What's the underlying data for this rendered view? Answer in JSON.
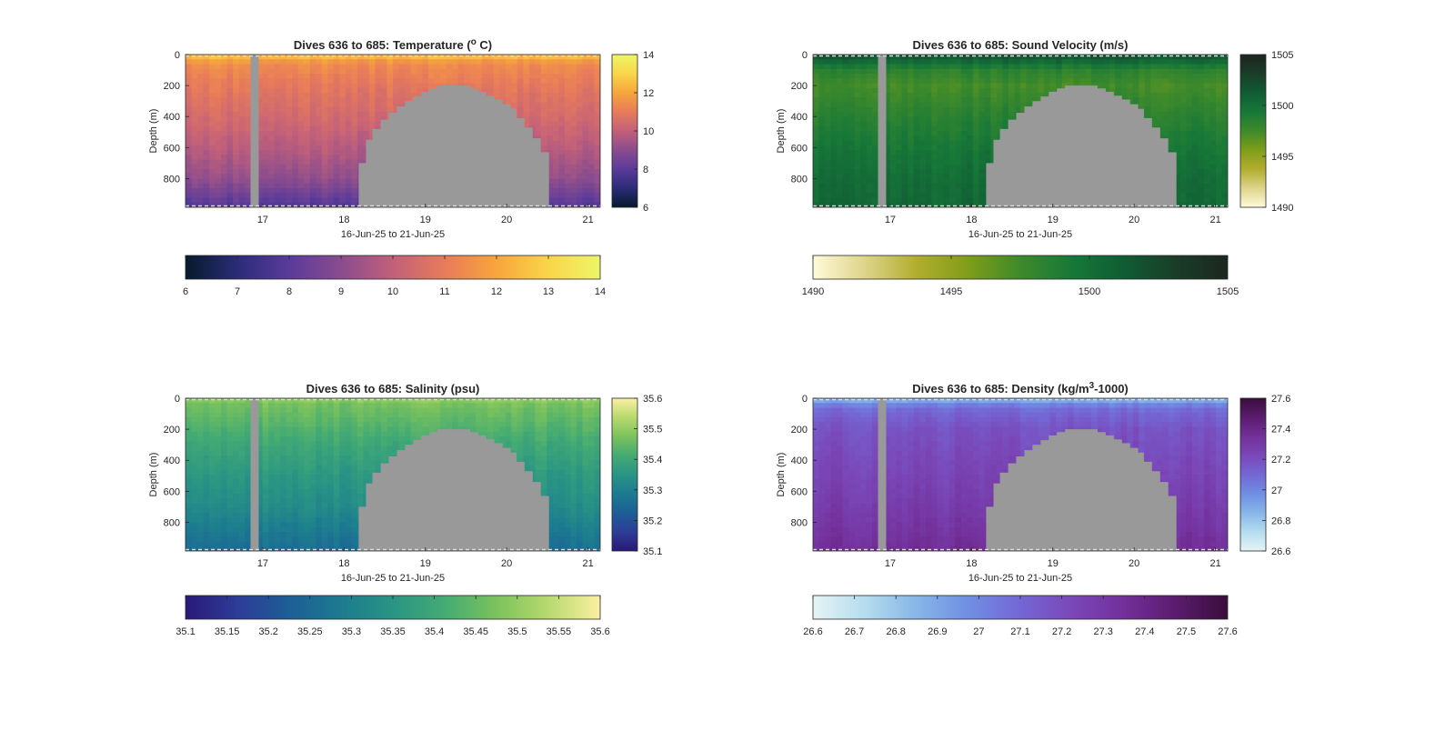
{
  "figure": {
    "background": "#ffffff",
    "no_data_color": "#999999"
  },
  "chart_data": [
    {
      "type": "heatmap",
      "title": "Dives 636 to 685: Temperature (",
      "title_superscript": "o",
      "title_suffix": " C)",
      "xlabel": "16-Jun-25 to 21-Jun-25",
      "ylabel": "Depth (m)",
      "xlim": [
        16.05,
        21.15
      ],
      "ylim": [
        0,
        985
      ],
      "y_reversed": true,
      "xticks": [
        17,
        18,
        19,
        20,
        21
      ],
      "yticks": [
        0,
        200,
        400,
        600,
        800
      ],
      "clim": [
        6,
        14
      ],
      "colorbar_ticks": [
        6,
        8,
        10,
        12,
        14
      ],
      "hbar_ticks": [
        "6",
        "7",
        "8",
        "9",
        "10",
        "11",
        "12",
        "13",
        "14"
      ],
      "colormap": [
        "#061a2c",
        "#2b2c78",
        "#5a3b9a",
        "#8a4c8e",
        "#c2607a",
        "#e87b5a",
        "#f7a53c",
        "#f9d549",
        "#eef569"
      ],
      "profile": [
        [
          0,
          12.8
        ],
        [
          25,
          12.1
        ],
        [
          60,
          11.4
        ],
        [
          200,
          10.9
        ],
        [
          400,
          10.4
        ],
        [
          600,
          9.8
        ],
        [
          800,
          9.1
        ],
        [
          900,
          8.4
        ],
        [
          985,
          7.8
        ]
      ],
      "gaps": [
        [
          16.85,
          16.95
        ]
      ],
      "no_data_region": [
        [
          18.18,
          985
        ],
        [
          18.18,
          700
        ],
        [
          18.27,
          700
        ],
        [
          18.27,
          550
        ],
        [
          18.35,
          550
        ],
        [
          18.35,
          480
        ],
        [
          18.45,
          480
        ],
        [
          18.45,
          420
        ],
        [
          18.55,
          420
        ],
        [
          18.55,
          375
        ],
        [
          18.65,
          375
        ],
        [
          18.65,
          335
        ],
        [
          18.75,
          335
        ],
        [
          18.75,
          300
        ],
        [
          18.85,
          300
        ],
        [
          18.85,
          270
        ],
        [
          18.95,
          270
        ],
        [
          18.95,
          240
        ],
        [
          19.05,
          240
        ],
        [
          19.05,
          218
        ],
        [
          19.15,
          218
        ],
        [
          19.15,
          200
        ],
        [
          19.55,
          200
        ],
        [
          19.55,
          218
        ],
        [
          19.65,
          218
        ],
        [
          19.65,
          240
        ],
        [
          19.75,
          240
        ],
        [
          19.75,
          265
        ],
        [
          19.85,
          265
        ],
        [
          19.85,
          290
        ],
        [
          19.95,
          290
        ],
        [
          19.95,
          320
        ],
        [
          20.05,
          320
        ],
        [
          20.05,
          350
        ],
        [
          20.12,
          350
        ],
        [
          20.12,
          410
        ],
        [
          20.22,
          410
        ],
        [
          20.22,
          470
        ],
        [
          20.32,
          470
        ],
        [
          20.32,
          540
        ],
        [
          20.42,
          540
        ],
        [
          20.42,
          630
        ],
        [
          20.52,
          630
        ],
        [
          20.52,
          985
        ]
      ]
    },
    {
      "type": "heatmap",
      "title": "Dives 636 to 685: Sound Velocity (m/s)",
      "xlabel": "16-Jun-25 to 21-Jun-25",
      "ylabel": "Depth (m)",
      "xlim": [
        16.05,
        21.15
      ],
      "ylim": [
        0,
        985
      ],
      "y_reversed": true,
      "xticks": [
        17,
        18,
        19,
        20,
        21
      ],
      "yticks": [
        0,
        200,
        400,
        600,
        800
      ],
      "clim": [
        1490,
        1505
      ],
      "colorbar_ticks": [
        1490,
        1495,
        1500,
        1505
      ],
      "hbar_ticks": [
        "1490",
        "1495",
        "1500",
        "1505"
      ],
      "colormap": [
        "#fefbd9",
        "#ded48a",
        "#b2ad2e",
        "#7f9d19",
        "#3e8a2b",
        "#177838",
        "#105c34",
        "#1a3d28",
        "#1c2620"
      ],
      "profile": [
        [
          0,
          1502.0
        ],
        [
          40,
          1500.6
        ],
        [
          100,
          1498.4
        ],
        [
          200,
          1497.4
        ],
        [
          400,
          1498.5
        ],
        [
          600,
          1499.5
        ],
        [
          800,
          1500.2
        ],
        [
          985,
          1500.6
        ]
      ],
      "gaps": [
        [
          16.85,
          16.95
        ]
      ],
      "no_data_region": [
        [
          18.18,
          985
        ],
        [
          18.18,
          700
        ],
        [
          18.27,
          700
        ],
        [
          18.27,
          550
        ],
        [
          18.35,
          550
        ],
        [
          18.35,
          480
        ],
        [
          18.45,
          480
        ],
        [
          18.45,
          420
        ],
        [
          18.55,
          420
        ],
        [
          18.55,
          375
        ],
        [
          18.65,
          375
        ],
        [
          18.65,
          335
        ],
        [
          18.75,
          335
        ],
        [
          18.75,
          300
        ],
        [
          18.85,
          300
        ],
        [
          18.85,
          270
        ],
        [
          18.95,
          270
        ],
        [
          18.95,
          240
        ],
        [
          19.05,
          240
        ],
        [
          19.05,
          218
        ],
        [
          19.15,
          218
        ],
        [
          19.15,
          200
        ],
        [
          19.55,
          200
        ],
        [
          19.55,
          218
        ],
        [
          19.65,
          218
        ],
        [
          19.65,
          240
        ],
        [
          19.75,
          240
        ],
        [
          19.75,
          265
        ],
        [
          19.85,
          265
        ],
        [
          19.85,
          290
        ],
        [
          19.95,
          290
        ],
        [
          19.95,
          320
        ],
        [
          20.05,
          320
        ],
        [
          20.05,
          350
        ],
        [
          20.12,
          350
        ],
        [
          20.12,
          410
        ],
        [
          20.22,
          410
        ],
        [
          20.22,
          470
        ],
        [
          20.32,
          470
        ],
        [
          20.32,
          540
        ],
        [
          20.42,
          540
        ],
        [
          20.42,
          630
        ],
        [
          20.52,
          630
        ],
        [
          20.52,
          985
        ]
      ]
    },
    {
      "type": "heatmap",
      "title": "Dives 636 to 685: Salinity (psu)",
      "xlabel": "16-Jun-25 to 21-Jun-25",
      "ylabel": "Depth (m)",
      "xlim": [
        16.05,
        21.15
      ],
      "ylim": [
        0,
        985
      ],
      "y_reversed": true,
      "xticks": [
        17,
        18,
        19,
        20,
        21
      ],
      "yticks": [
        0,
        200,
        400,
        600,
        800
      ],
      "clim": [
        35.1,
        35.6
      ],
      "colorbar_ticks": [
        "35.1",
        "35.2",
        "35.3",
        "35.4",
        "35.5",
        "35.6"
      ],
      "hbar_ticks": [
        "35.1",
        "35.15",
        "35.2",
        "35.25",
        "35.3",
        "35.35",
        "35.4",
        "35.45",
        "35.5",
        "35.55",
        "35.6"
      ],
      "colormap": [
        "#2a1877",
        "#2d3d98",
        "#1d5e96",
        "#1c7b90",
        "#2a9484",
        "#44ab73",
        "#7bc25c",
        "#b7d96e",
        "#fbf0a2"
      ],
      "profile": [
        [
          0,
          35.5
        ],
        [
          40,
          35.47
        ],
        [
          150,
          35.44
        ],
        [
          300,
          35.4
        ],
        [
          500,
          35.36
        ],
        [
          700,
          35.33
        ],
        [
          850,
          35.29
        ],
        [
          985,
          35.26
        ]
      ],
      "gaps": [
        [
          16.85,
          16.95
        ]
      ],
      "no_data_region": [
        [
          18.18,
          985
        ],
        [
          18.18,
          700
        ],
        [
          18.27,
          700
        ],
        [
          18.27,
          550
        ],
        [
          18.35,
          550
        ],
        [
          18.35,
          480
        ],
        [
          18.45,
          480
        ],
        [
          18.45,
          420
        ],
        [
          18.55,
          420
        ],
        [
          18.55,
          375
        ],
        [
          18.65,
          375
        ],
        [
          18.65,
          335
        ],
        [
          18.75,
          335
        ],
        [
          18.75,
          300
        ],
        [
          18.85,
          300
        ],
        [
          18.85,
          270
        ],
        [
          18.95,
          270
        ],
        [
          18.95,
          240
        ],
        [
          19.05,
          240
        ],
        [
          19.05,
          218
        ],
        [
          19.15,
          218
        ],
        [
          19.15,
          200
        ],
        [
          19.55,
          200
        ],
        [
          19.55,
          218
        ],
        [
          19.65,
          218
        ],
        [
          19.65,
          240
        ],
        [
          19.75,
          240
        ],
        [
          19.75,
          265
        ],
        [
          19.85,
          265
        ],
        [
          19.85,
          290
        ],
        [
          19.95,
          290
        ],
        [
          19.95,
          320
        ],
        [
          20.05,
          320
        ],
        [
          20.05,
          350
        ],
        [
          20.12,
          350
        ],
        [
          20.12,
          410
        ],
        [
          20.22,
          410
        ],
        [
          20.22,
          470
        ],
        [
          20.32,
          470
        ],
        [
          20.32,
          540
        ],
        [
          20.42,
          540
        ],
        [
          20.42,
          630
        ],
        [
          20.52,
          630
        ],
        [
          20.52,
          985
        ]
      ]
    },
    {
      "type": "heatmap",
      "title": "Dives 636 to 685: Density (kg/m",
      "title_superscript": "3",
      "title_suffix": "-1000)",
      "xlabel": "16-Jun-25 to 21-Jun-25",
      "ylabel": "Depth (m)",
      "xlim": [
        16.05,
        21.15
      ],
      "ylim": [
        0,
        985
      ],
      "y_reversed": true,
      "xticks": [
        17,
        18,
        19,
        20,
        21
      ],
      "yticks": [
        0,
        200,
        400,
        600,
        800
      ],
      "clim": [
        26.6,
        27.6
      ],
      "colorbar_ticks": [
        "26.6",
        "26.8",
        "27",
        "27.2",
        "27.4",
        "27.6"
      ],
      "hbar_ticks": [
        "26.6",
        "26.7",
        "26.8",
        "26.9",
        "27",
        "27.1",
        "27.2",
        "27.3",
        "27.4",
        "27.5",
        "27.6"
      ],
      "colormap": [
        "#e5f4f5",
        "#b5dcee",
        "#87b6e8",
        "#6f8ee3",
        "#7467d4",
        "#7a47b8",
        "#73309a",
        "#5a1c6e",
        "#3a0d3c"
      ],
      "profile": [
        [
          0,
          26.82
        ],
        [
          30,
          26.98
        ],
        [
          80,
          27.1
        ],
        [
          200,
          27.18
        ],
        [
          400,
          27.22
        ],
        [
          600,
          27.26
        ],
        [
          800,
          27.31
        ],
        [
          985,
          27.36
        ]
      ],
      "gaps": [
        [
          16.85,
          16.95
        ]
      ],
      "no_data_region": [
        [
          18.18,
          985
        ],
        [
          18.18,
          700
        ],
        [
          18.27,
          700
        ],
        [
          18.27,
          550
        ],
        [
          18.35,
          550
        ],
        [
          18.35,
          480
        ],
        [
          18.45,
          480
        ],
        [
          18.45,
          420
        ],
        [
          18.55,
          420
        ],
        [
          18.55,
          375
        ],
        [
          18.65,
          375
        ],
        [
          18.65,
          335
        ],
        [
          18.75,
          335
        ],
        [
          18.75,
          300
        ],
        [
          18.85,
          300
        ],
        [
          18.85,
          270
        ],
        [
          18.95,
          270
        ],
        [
          18.95,
          240
        ],
        [
          19.05,
          240
        ],
        [
          19.05,
          218
        ],
        [
          19.15,
          218
        ],
        [
          19.15,
          200
        ],
        [
          19.55,
          200
        ],
        [
          19.55,
          218
        ],
        [
          19.65,
          218
        ],
        [
          19.65,
          240
        ],
        [
          19.75,
          240
        ],
        [
          19.75,
          265
        ],
        [
          19.85,
          265
        ],
        [
          19.85,
          290
        ],
        [
          19.95,
          290
        ],
        [
          19.95,
          320
        ],
        [
          20.05,
          320
        ],
        [
          20.05,
          350
        ],
        [
          20.12,
          350
        ],
        [
          20.12,
          410
        ],
        [
          20.22,
          410
        ],
        [
          20.22,
          470
        ],
        [
          20.32,
          470
        ],
        [
          20.32,
          540
        ],
        [
          20.42,
          540
        ],
        [
          20.42,
          630
        ],
        [
          20.52,
          630
        ],
        [
          20.52,
          985
        ]
      ]
    }
  ]
}
